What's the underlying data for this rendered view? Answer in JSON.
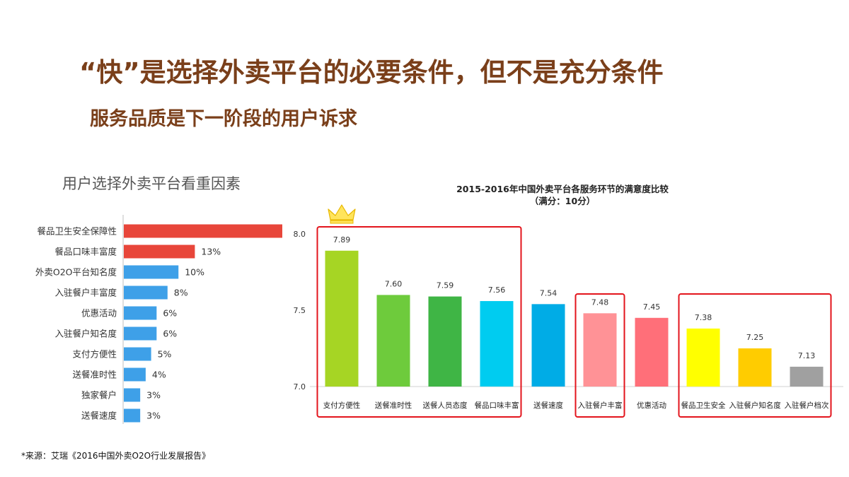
{
  "slide": {
    "title": "“快”是选择外卖平台的必要条件，但不是充分条件",
    "subtitle": "服务品质是下一阶段的用户诉求",
    "source": "*来源：艾瑞《2016中国外卖O2O行业发展报告》"
  },
  "chart_data": [
    {
      "type": "bar",
      "orientation": "horizontal",
      "title": "用户选择外卖平台看重因素",
      "categories": [
        "餐品卫生安全保障性",
        "餐品口味丰富度",
        "外卖O2O平台知名度",
        "入驻餐户丰富度",
        "优惠活动",
        "入驻餐户知名度",
        "支付方便性",
        "送餐准时性",
        "独家餐户",
        "送餐速度"
      ],
      "values": [
        29,
        13,
        10,
        8,
        6,
        6,
        5,
        4,
        3,
        3
      ],
      "labels": [
        "",
        "13%",
        "10%",
        "8%",
        "6%",
        "6%",
        "5%",
        "4%",
        "3%",
        "3%"
      ],
      "colors": [
        "#e8463a",
        "#e8463a",
        "#3ea0e8",
        "#3ea0e8",
        "#3ea0e8",
        "#3ea0e8",
        "#3ea0e8",
        "#3ea0e8",
        "#3ea0e8",
        "#3ea0e8"
      ],
      "xlim": [
        0,
        29
      ]
    },
    {
      "type": "bar",
      "title": "2015-2016年中国外卖平台各服务环节的满意度比较",
      "subtitle": "（满分：10分）",
      "categories": [
        "支付方便性",
        "送餐准时性",
        "送餐人员态度",
        "餐品口味丰富",
        "送餐速度",
        "入驻餐户丰富",
        "优惠活动",
        "餐品卫生安全",
        "入驻餐户知名度",
        "入驻餐户档次"
      ],
      "values": [
        7.89,
        7.6,
        7.59,
        7.56,
        7.54,
        7.48,
        7.45,
        7.38,
        7.25,
        7.13
      ],
      "value_labels": [
        "7.89",
        "7.60",
        "7.59",
        "7.56",
        "7.54",
        "7.48",
        "7.45",
        "7.38",
        "7.25",
        "7.13"
      ],
      "colors": [
        "#a6d524",
        "#6ecb3c",
        "#3fb545",
        "#00ccf0",
        "#00ace6",
        "#ff9296",
        "#ff6f79",
        "#ffff00",
        "#ffcc00",
        "#a0a0a0"
      ],
      "yticks": [
        "8.0",
        "7.5",
        "7.0"
      ],
      "ylim": [
        7.0,
        8.0
      ],
      "highlight_groups": [
        [
          0,
          3
        ],
        [
          5,
          5
        ],
        [
          7,
          9
        ]
      ],
      "highlight_color": "#e3141c",
      "crown_on": 0
    }
  ]
}
